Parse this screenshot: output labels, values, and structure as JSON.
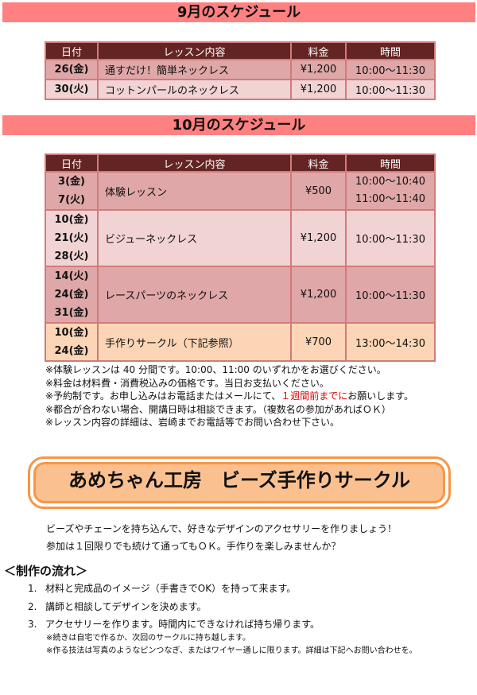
{
  "sep": {
    "title": "9月のスケジュール",
    "headers": [
      "日付",
      "レッスン内容",
      "料金",
      "時間"
    ],
    "rows": [
      {
        "date": "26(金)",
        "lesson": "通すだけ！簡単ネックレス",
        "price": "¥1,200",
        "time": "10:00〜11:30"
      },
      {
        "date": "30(火)",
        "lesson": "コットンパールのネックレス",
        "price": "¥1,200",
        "time": "10:00〜11:30"
      }
    ]
  },
  "oct": {
    "title": "10月のスケジュール",
    "headers": [
      "日付",
      "レッスン内容",
      "料金",
      "時間"
    ],
    "rows": [
      {
        "dates": [
          "3(金)",
          "7(火)"
        ],
        "lesson": "体験レッスン",
        "price": "¥500",
        "times": [
          "10:00〜10:40",
          "11:00〜11:40"
        ]
      },
      {
        "dates": [
          "10(金)",
          "21(火)",
          "28(火)"
        ],
        "lesson": "ビジューネックレス",
        "price": "¥1,200",
        "times": [
          "10:00〜11:30"
        ]
      },
      {
        "dates": [
          "14(火)",
          "24(金)",
          "31(金)"
        ],
        "lesson": "レースパーツのネックレス",
        "price": "¥1,200",
        "times": [
          "10:00〜11:30"
        ]
      },
      {
        "dates": [
          "10(金)",
          "24(金)"
        ],
        "lesson": "手作りサークル（下記参照）",
        "price": "¥700",
        "times": [
          "13:00〜14:30"
        ]
      }
    ]
  },
  "notes": {
    "n1": "※体験レッスンは 40 分間です。10:00、11:00 のいずれかをお選びください。",
    "n2": "※料金は材料費・消費税込みの価格です。当日お支払いください。",
    "n3a": "※予約制です。お申し込みはお電話またはメールにて、",
    "n3red": "１週間前までに",
    "n3b": "お願いします。",
    "n4": "※都合が合わない場合、開講日時は相談できます。（複数名の参加があればＯＫ）",
    "n5": "※レッスン内容の詳細は、岩崎までお電話等でお問い合わせ下さい。"
  },
  "circle": {
    "title": "あめちゃん工房　ビーズ手作りサークル",
    "intro1": "ビーズやチェーンを持ち込んで、好きなデザインのアクセサリーを作りましょう！",
    "intro2": "参加は１回限りでも続けて通ってもＯＫ。手作りを楽しみませんか？"
  },
  "flow": {
    "heading": "＜制作の流れ＞",
    "steps": [
      {
        "n": "1.",
        "text": "材料と完成品のイメージ（手書きでOK）を持って来ます。"
      },
      {
        "n": "2.",
        "text": "講師と相談してデザインを決めます。"
      },
      {
        "n": "3.",
        "text": "アクセサリーを作ります。時間内にできなければ持ち帰ります。"
      }
    ],
    "note1": "※続きは自宅で作るか、次回のサークルに持ち越します。",
    "note2": "※作る技法は写真のようなピンつなぎ、またはワイヤー通しに限ります。詳細は下記へお問い合わせを。"
  }
}
